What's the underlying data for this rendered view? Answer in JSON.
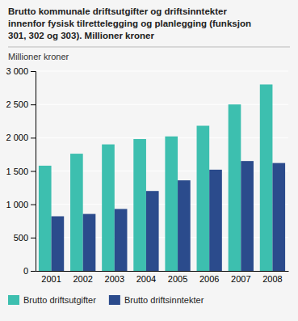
{
  "chart_data": {
    "type": "bar",
    "title": "Brutto kommunale driftsutgifter og driftsinntekter\ninnenfor fysisk tilrettelegging og planlegging (funksjon\n301, 302 og 303). Millioner kroner",
    "y_label": "Millioner kroner",
    "categories": [
      "2001",
      "2002",
      "2003",
      "2004",
      "2005",
      "2006",
      "2007",
      "2008"
    ],
    "series": [
      {
        "name": "Brutto driftsutgifter",
        "color": "#3dbfaf",
        "values": [
          1580,
          1760,
          1900,
          1980,
          2020,
          2180,
          2500,
          2800
        ]
      },
      {
        "name": "Brutto driftsinntekter",
        "color": "#2b4b8c",
        "values": [
          820,
          855,
          930,
          1200,
          1360,
          1520,
          1650,
          1620
        ]
      }
    ],
    "ylim": [
      0,
      3000
    ],
    "yticks": [
      0,
      500,
      {
        "value": 1000,
        "label": "1 000"
      },
      {
        "value": 1500,
        "label": "1 500"
      },
      {
        "value": 2000,
        "label": "2 000"
      },
      {
        "value": 2500,
        "label": "2 500"
      },
      {
        "value": 3000,
        "label": "3 000"
      }
    ],
    "grid": true,
    "legend": "bottom"
  }
}
